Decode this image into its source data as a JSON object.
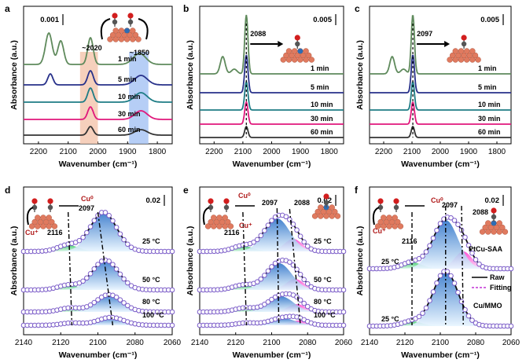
{
  "figure": {
    "y_axis_label": "Absorbance (a.u.)",
    "x_axis_label": "Wavenumber (cm⁻¹)"
  },
  "chart_data": [
    {
      "panel": "a",
      "type": "line",
      "xlim": [
        2250,
        1750
      ],
      "xticks": [
        "2200",
        "2100",
        "2000",
        "1900",
        "1800"
      ],
      "scale_bar": "0.001",
      "series": [
        {
          "name": "1 min",
          "color": "#5f8a5c"
        },
        {
          "name": "5 min",
          "color": "#28318a"
        },
        {
          "name": "10 min",
          "color": "#1e7c85"
        },
        {
          "name": "30 min",
          "color": "#e0187c"
        },
        {
          "name": "60 min",
          "color": "#333333"
        }
      ],
      "bands": [
        {
          "range": [
            2060,
            2000
          ],
          "color": "#f4c8b0"
        },
        {
          "range": [
            1895,
            1830
          ],
          "color": "#a9c6f5"
        }
      ],
      "annotations": [
        "~2020",
        "~1850"
      ]
    },
    {
      "panel": "b",
      "type": "line",
      "xlim": [
        2250,
        1750
      ],
      "xticks": [
        "2200",
        "2100",
        "2000",
        "1900",
        "1800"
      ],
      "scale_bar": "0.005",
      "peak": "2088",
      "series": [
        {
          "name": "1 min",
          "color": "#5f8a5c"
        },
        {
          "name": "5 min",
          "color": "#28318a"
        },
        {
          "name": "10 min",
          "color": "#1e7c85"
        },
        {
          "name": "30 min",
          "color": "#e0187c"
        },
        {
          "name": "60 min",
          "color": "#333333"
        }
      ]
    },
    {
      "panel": "c",
      "type": "line",
      "xlim": [
        2250,
        1750
      ],
      "xticks": [
        "2200",
        "2100",
        "2000",
        "1900",
        "1800"
      ],
      "scale_bar": "0.005",
      "peak": "2097",
      "series": [
        {
          "name": "1 min",
          "color": "#5f8a5c"
        },
        {
          "name": "5 min",
          "color": "#28318a"
        },
        {
          "name": "10 min",
          "color": "#1e7c85"
        },
        {
          "name": "30 min",
          "color": "#e0187c"
        },
        {
          "name": "60 min",
          "color": "#333333"
        }
      ]
    },
    {
      "panel": "d",
      "type": "line",
      "xlim": [
        2140,
        2060
      ],
      "xticks": [
        "2140",
        "2120",
        "2100",
        "2080",
        "2060"
      ],
      "scale_bar": "0.02",
      "series_labels": [
        "25 °C",
        "50 °C",
        "80 °C",
        "100 °C"
      ],
      "peaks": [
        "2116",
        "2097"
      ],
      "species": [
        "Cu⁺",
        "Cu⁰"
      ]
    },
    {
      "panel": "e",
      "type": "line",
      "xlim": [
        2140,
        2060
      ],
      "xticks": [
        "2140",
        "2120",
        "2100",
        "2080",
        "2060"
      ],
      "scale_bar": "0.02",
      "series_labels": [
        "25 °C",
        "50 °C",
        "80 °C",
        "100 °C"
      ],
      "peaks": [
        "2116",
        "2097",
        "2088"
      ],
      "species": [
        "Cu⁺",
        "Cu⁰"
      ]
    },
    {
      "panel": "f",
      "type": "line",
      "xlim": [
        2140,
        2060
      ],
      "xticks": [
        "2140",
        "2120",
        "2100",
        "2080",
        "2060"
      ],
      "scale_bar": "0.02",
      "series_labels": [
        "25 °C",
        "25 °C"
      ],
      "samples": [
        "PtCu-SAA",
        "Cu/MMO"
      ],
      "peaks": [
        "2116",
        "2097",
        "2088"
      ],
      "species": [
        "Cu⁺",
        "Cu⁰"
      ],
      "legend": [
        "Raw",
        "Fitting"
      ]
    }
  ]
}
